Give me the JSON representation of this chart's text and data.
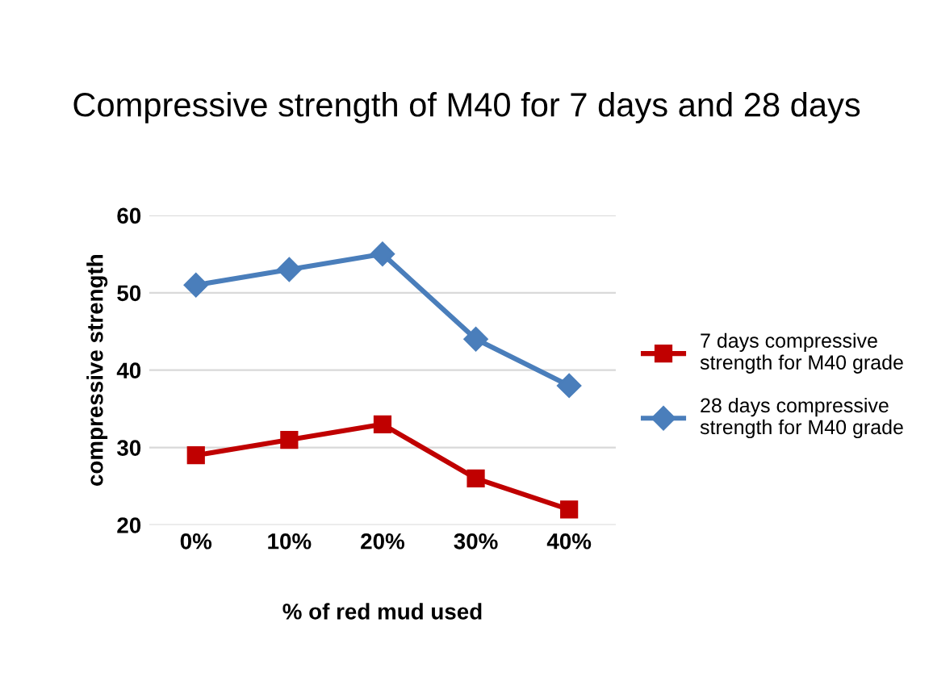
{
  "chart_data": {
    "type": "line",
    "title": "Compressive strength of M40 for 7 days and 28 days",
    "xlabel": "% of red mud used",
    "ylabel": "compressive strength",
    "categories": [
      "0%",
      "10%",
      "20%",
      "30%",
      "40%"
    ],
    "series": [
      {
        "name": "7 days compressive strength for M40 grade",
        "color": "#c00000",
        "values": [
          29,
          31,
          33,
          26,
          22
        ],
        "marker": "square"
      },
      {
        "name": "28 days compressive strength for M40 grade",
        "color": "#4a7ebb",
        "values": [
          51,
          53,
          55,
          44,
          38
        ],
        "marker": "diamond"
      }
    ],
    "ylim": [
      20,
      60
    ],
    "yticks": [
      20,
      30,
      40,
      50,
      60
    ],
    "grid": "y",
    "legend": "right"
  }
}
